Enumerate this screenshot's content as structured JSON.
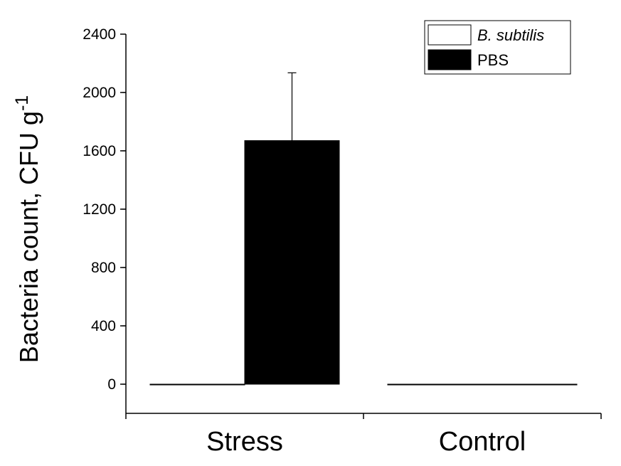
{
  "chart_data": {
    "type": "bar",
    "categories": [
      "Stress",
      "Control"
    ],
    "series": [
      {
        "name": "B. subtilis",
        "values": [
          0,
          0
        ],
        "color": "#ffffff",
        "error": [
          null,
          null
        ]
      },
      {
        "name": "PBS",
        "values": [
          1670,
          0
        ],
        "color": "#000000",
        "error": [
          465,
          null
        ]
      }
    ],
    "ylabel": "Bacteria count, CFU g",
    "ylabel_superscript": "-1",
    "ylim": [
      -200,
      2400
    ],
    "yticks": [
      "0",
      "400",
      "800",
      "1200",
      "1600",
      "2000",
      "2400"
    ],
    "ytick_values": [
      0,
      400,
      800,
      1200,
      1600,
      2000,
      2400
    ],
    "grid": false,
    "legend_position": "top-right"
  }
}
